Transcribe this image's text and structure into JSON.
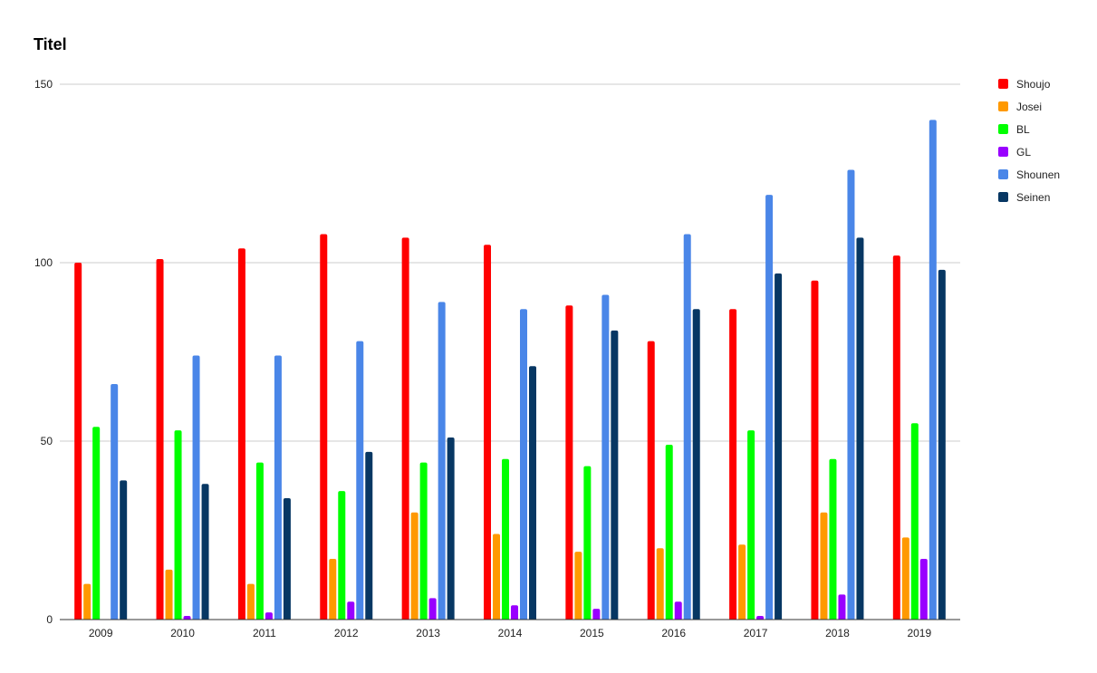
{
  "chart_data": {
    "type": "bar",
    "title": "Titel",
    "xlabel": "",
    "ylabel": "",
    "ylim": [
      0,
      150
    ],
    "yticks": [
      0,
      50,
      100,
      150
    ],
    "grid": true,
    "legend_position": "right",
    "categories": [
      "2009",
      "2010",
      "2011",
      "2012",
      "2013",
      "2014",
      "2015",
      "2016",
      "2017",
      "2018",
      "2019"
    ],
    "series": [
      {
        "name": "Shoujo",
        "color": "#ff0000",
        "values": [
          100,
          101,
          104,
          108,
          107,
          105,
          88,
          78,
          87,
          95,
          102
        ]
      },
      {
        "name": "Josei",
        "color": "#ff9900",
        "values": [
          10,
          14,
          10,
          17,
          30,
          24,
          19,
          20,
          21,
          30,
          23
        ]
      },
      {
        "name": "BL",
        "color": "#00ff00",
        "values": [
          54,
          53,
          44,
          36,
          44,
          45,
          43,
          49,
          53,
          45,
          55
        ]
      },
      {
        "name": "GL",
        "color": "#9900ff",
        "values": [
          0,
          1,
          2,
          5,
          6,
          4,
          3,
          5,
          1,
          7,
          17
        ]
      },
      {
        "name": "Shounen",
        "color": "#4a86e8",
        "values": [
          66,
          74,
          74,
          78,
          89,
          87,
          91,
          108,
          119,
          126,
          140
        ]
      },
      {
        "name": "Seinen",
        "color": "#073763",
        "values": [
          39,
          38,
          34,
          47,
          51,
          71,
          81,
          87,
          97,
          107,
          98
        ]
      }
    ]
  }
}
